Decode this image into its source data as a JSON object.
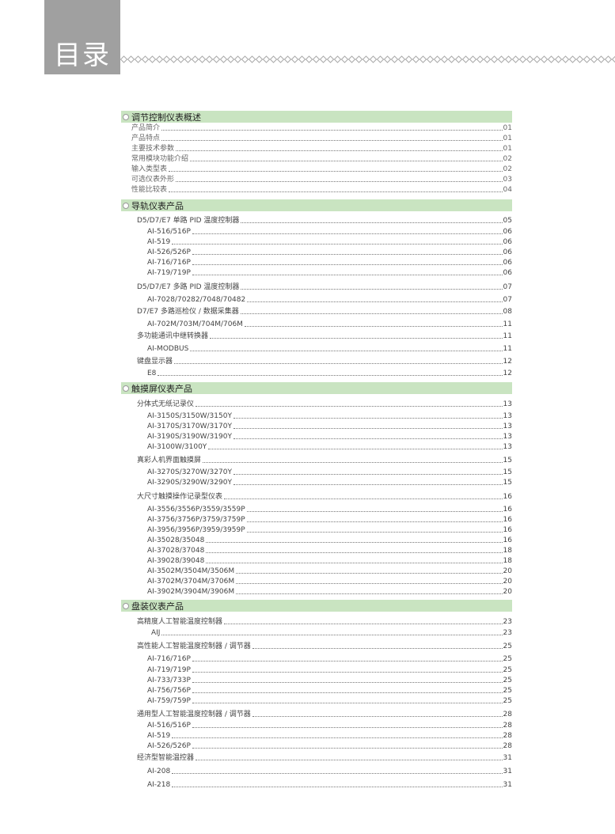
{
  "header": {
    "title": "目录"
  },
  "sections": [
    {
      "title": "调节控制仪表概述",
      "entries": [
        {
          "level": 0,
          "label": "产品简介",
          "page": "01"
        },
        {
          "level": 0,
          "label": "产品特点",
          "page": "01"
        },
        {
          "level": 0,
          "label": "主要技术参数",
          "page": "01"
        },
        {
          "level": 0,
          "label": "常用模块功能介绍",
          "page": "02"
        },
        {
          "level": 0,
          "label": "输入类型表",
          "page": "02"
        },
        {
          "level": 0,
          "label": "可选仪表外形",
          "page": "03"
        },
        {
          "level": 0,
          "label": "性能比较表",
          "page": "04"
        }
      ]
    },
    {
      "title": "导轨仪表产品",
      "entries": [
        {
          "level": 1,
          "label": "D5/D7/E7 单路 PID 温度控制器",
          "page": "05"
        },
        {
          "level": 2,
          "label": "AI-516/516P",
          "page": "06"
        },
        {
          "level": 2,
          "label": "AI-519",
          "page": "06"
        },
        {
          "level": 2,
          "label": "AI-526/526P",
          "page": "06"
        },
        {
          "level": 2,
          "label": "AI-716/716P",
          "page": "06"
        },
        {
          "level": 2,
          "label": "AI-719/719P",
          "page": "06"
        },
        {
          "level": 1,
          "label": "D5/D7/E7 多路 PID 温度控制器",
          "page": "07"
        },
        {
          "level": 2,
          "label": "AI-7028/70282/7048/70482",
          "page": "07"
        },
        {
          "level": 1,
          "label": "D7/E7 多路巡检仪 / 数据采集器",
          "page": "08"
        },
        {
          "level": 2,
          "label": "AI-702M/703M/704M/706M",
          "page": "11"
        },
        {
          "level": 1,
          "label": "多功能通讯中继转换器",
          "page": "11"
        },
        {
          "level": 2,
          "label": "AI-MODBUS",
          "page": "11"
        },
        {
          "level": 1,
          "label": "键盘显示器",
          "page": "12"
        },
        {
          "level": 2,
          "label": "E8",
          "page": "12"
        }
      ]
    },
    {
      "title": "触摸屏仪表产品",
      "entries": [
        {
          "level": 1,
          "label": "分体式无纸记录仪",
          "page": "13"
        },
        {
          "level": 2,
          "label": "AI-3150S/3150W/3150Y",
          "page": "13"
        },
        {
          "level": 2,
          "label": "AI-3170S/3170W/3170Y",
          "page": "13"
        },
        {
          "level": 2,
          "label": "AI-3190S/3190W/3190Y",
          "page": "13"
        },
        {
          "level": 2,
          "label": "AI-3100W/3100Y",
          "page": "13"
        },
        {
          "level": 1,
          "label": "真彩人机界面触摸屏",
          "page": "15"
        },
        {
          "level": 2,
          "label": "AI-3270S/3270W/3270Y",
          "page": "15"
        },
        {
          "level": 2,
          "label": "AI-3290S/3290W/3290Y",
          "page": "15"
        },
        {
          "level": 1,
          "label": "大尺寸触摸操作记录型仪表",
          "page": "16"
        },
        {
          "level": 2,
          "label": "AI-3556/3556P/3559/3559P",
          "page": "16"
        },
        {
          "level": 2,
          "label": "AI-3756/3756P/3759/3759P",
          "page": "16"
        },
        {
          "level": 2,
          "label": "AI-3956/3956P/3959/3959P",
          "page": "16"
        },
        {
          "level": 2,
          "label": "AI-35028/35048",
          "page": "16"
        },
        {
          "level": 2,
          "label": "AI-37028/37048",
          "page": "18"
        },
        {
          "level": 2,
          "label": "AI-39028/39048",
          "page": "18"
        },
        {
          "level": 2,
          "label": "AI-3502M/3504M/3506M",
          "page": "20"
        },
        {
          "level": 2,
          "label": "AI-3702M/3704M/3706M",
          "page": "20"
        },
        {
          "level": 2,
          "label": "AI-3902M/3904M/3906M",
          "page": "20"
        }
      ]
    },
    {
      "title": "盘装仪表产品",
      "entries": [
        {
          "level": 1,
          "label": "高精度人工智能温度控制器",
          "page": "23"
        },
        {
          "level": 2,
          "label": "AIJ",
          "page": "23"
        },
        {
          "level": 1,
          "label": "高性能人工智能温度控制器 / 调节器",
          "page": "25"
        },
        {
          "level": 2,
          "label": "AI-716/716P",
          "page": "25"
        },
        {
          "level": 2,
          "label": "AI-719/719P",
          "page": "25"
        },
        {
          "level": 2,
          "label": "AI-733/733P",
          "page": "25"
        },
        {
          "level": 2,
          "label": "AI-756/756P",
          "page": "25"
        },
        {
          "level": 2,
          "label": "AI-759/759P",
          "page": "25"
        },
        {
          "level": 1,
          "label": "通用型人工智能温度控制器 / 调节器",
          "page": "28"
        },
        {
          "level": 2,
          "label": "AI-516/516P",
          "page": "28"
        },
        {
          "level": 2,
          "label": "AI-519",
          "page": "28"
        },
        {
          "level": 2,
          "label": "AI-526/526P",
          "page": "28"
        },
        {
          "level": 1,
          "label": "经济型智能温控器",
          "page": "31"
        },
        {
          "level": 2,
          "label": "AI-208",
          "page": "31"
        },
        {
          "level": 2,
          "label": "AI-218",
          "page": "31"
        }
      ]
    }
  ],
  "colors": {
    "section_bar": "#c9e4c1",
    "title_box": "#a0a0a0"
  }
}
